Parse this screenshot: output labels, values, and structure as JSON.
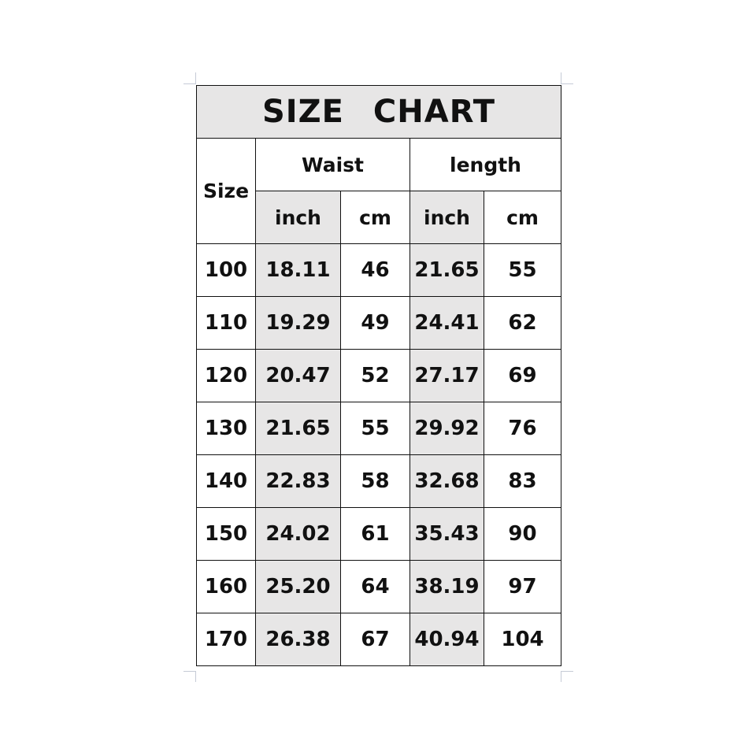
{
  "title": "SIZE CHART",
  "headers": {
    "size": "Size",
    "waist": "Waist",
    "length": "length",
    "sub": [
      "inch",
      "cm",
      "inch",
      "cm"
    ]
  },
  "rows": [
    [
      "100",
      "18.11",
      "46",
      "21.65",
      "55"
    ],
    [
      "110",
      "19.29",
      "49",
      "24.41",
      "62"
    ],
    [
      "120",
      "20.47",
      "52",
      "27.17",
      "69"
    ],
    [
      "130",
      "21.65",
      "55",
      "29.92",
      "76"
    ],
    [
      "140",
      "22.83",
      "58",
      "32.68",
      "83"
    ],
    [
      "150",
      "24.02",
      "61",
      "35.43",
      "90"
    ],
    [
      "160",
      "25.20",
      "64",
      "38.19",
      "97"
    ],
    [
      "170",
      "26.38",
      "67",
      "40.94",
      "104"
    ]
  ],
  "colors": {
    "shade": "#e7e6e6",
    "border": "#111111"
  }
}
